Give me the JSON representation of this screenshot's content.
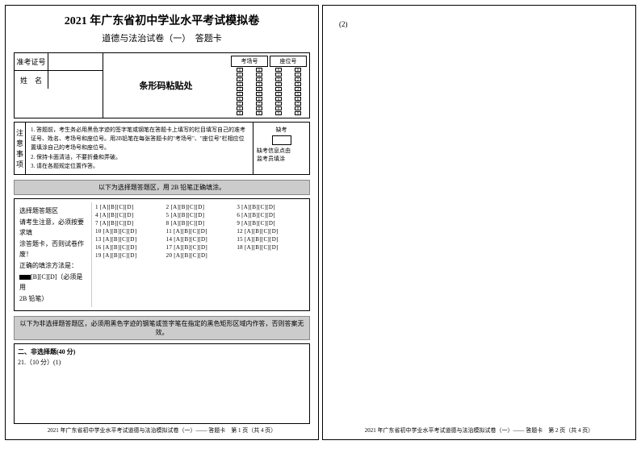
{
  "header": {
    "title_main": "2021 年广东省初中学业水平考试模拟卷",
    "title_sub": "道德与法治试卷（一）　答题卡"
  },
  "info": {
    "exam_id_label": "准考证号",
    "name_label": "姓　名",
    "barcode_label": "条形码粘贴处",
    "room_label": "考场号",
    "seat_label": "座位号"
  },
  "notice": {
    "vert0": "注",
    "vert1": "意",
    "vert2": "事",
    "vert3": "项",
    "line1": "1. 答题前，考生务必用黑色字迹的签字笔或钢笔在答题卡上填写的栏目填写自己的准考证号、姓名、考场号和座位号。用2B铅笔在每张答题卡的\"考场号\"、\"座位号\"栏相应位置填涂自己的考场号和座位号。",
    "line2": "2. 保持卡面清洁，不要折叠和弄破。",
    "line3": "3. 请在各题规定位置作答。",
    "absent_label": "缺考",
    "absent_note1": "缺考信息点由",
    "absent_note2": "监考员填涂"
  },
  "banner_mc": "以下为选择题答题区，用 2B 铅笔正确填涂。",
  "mc": {
    "instruction_title": "选择题答题区",
    "instruction_l1": "请考生注意，必须按要求填",
    "instruction_l2": "涂答题卡，否则试卷作废！",
    "instruction_l3": "正确的填涂方法是：",
    "instruction_l4": "[B][C][D]（必须是用",
    "instruction_l5": "2B 铅笔）",
    "options": "[A][B][C][D]"
  },
  "banner_free": "以下为非选择题答题区，必须用黑色字迹的钢笔或签字笔在指定的黑色矩形区域内作答，否则答案无效。",
  "free": {
    "section_title": "二、非选择题(40 分)",
    "q21": "21.（10 分）(1)"
  },
  "footers": {
    "p1": "2021 年广东省初中学业水平考试道德与法治模拟试卷（一）—— 答题卡　第 1 页（共 4 页）",
    "p2": "2021 年广东省初中学业水平考试道德与法治模拟试卷（一）—— 答题卡　第 2 页（共 4 页）"
  },
  "page2": {
    "marker": "(2)"
  },
  "style": {
    "bg": "#ffffff",
    "banner_bg": "#cccccc",
    "border": "#000000"
  }
}
